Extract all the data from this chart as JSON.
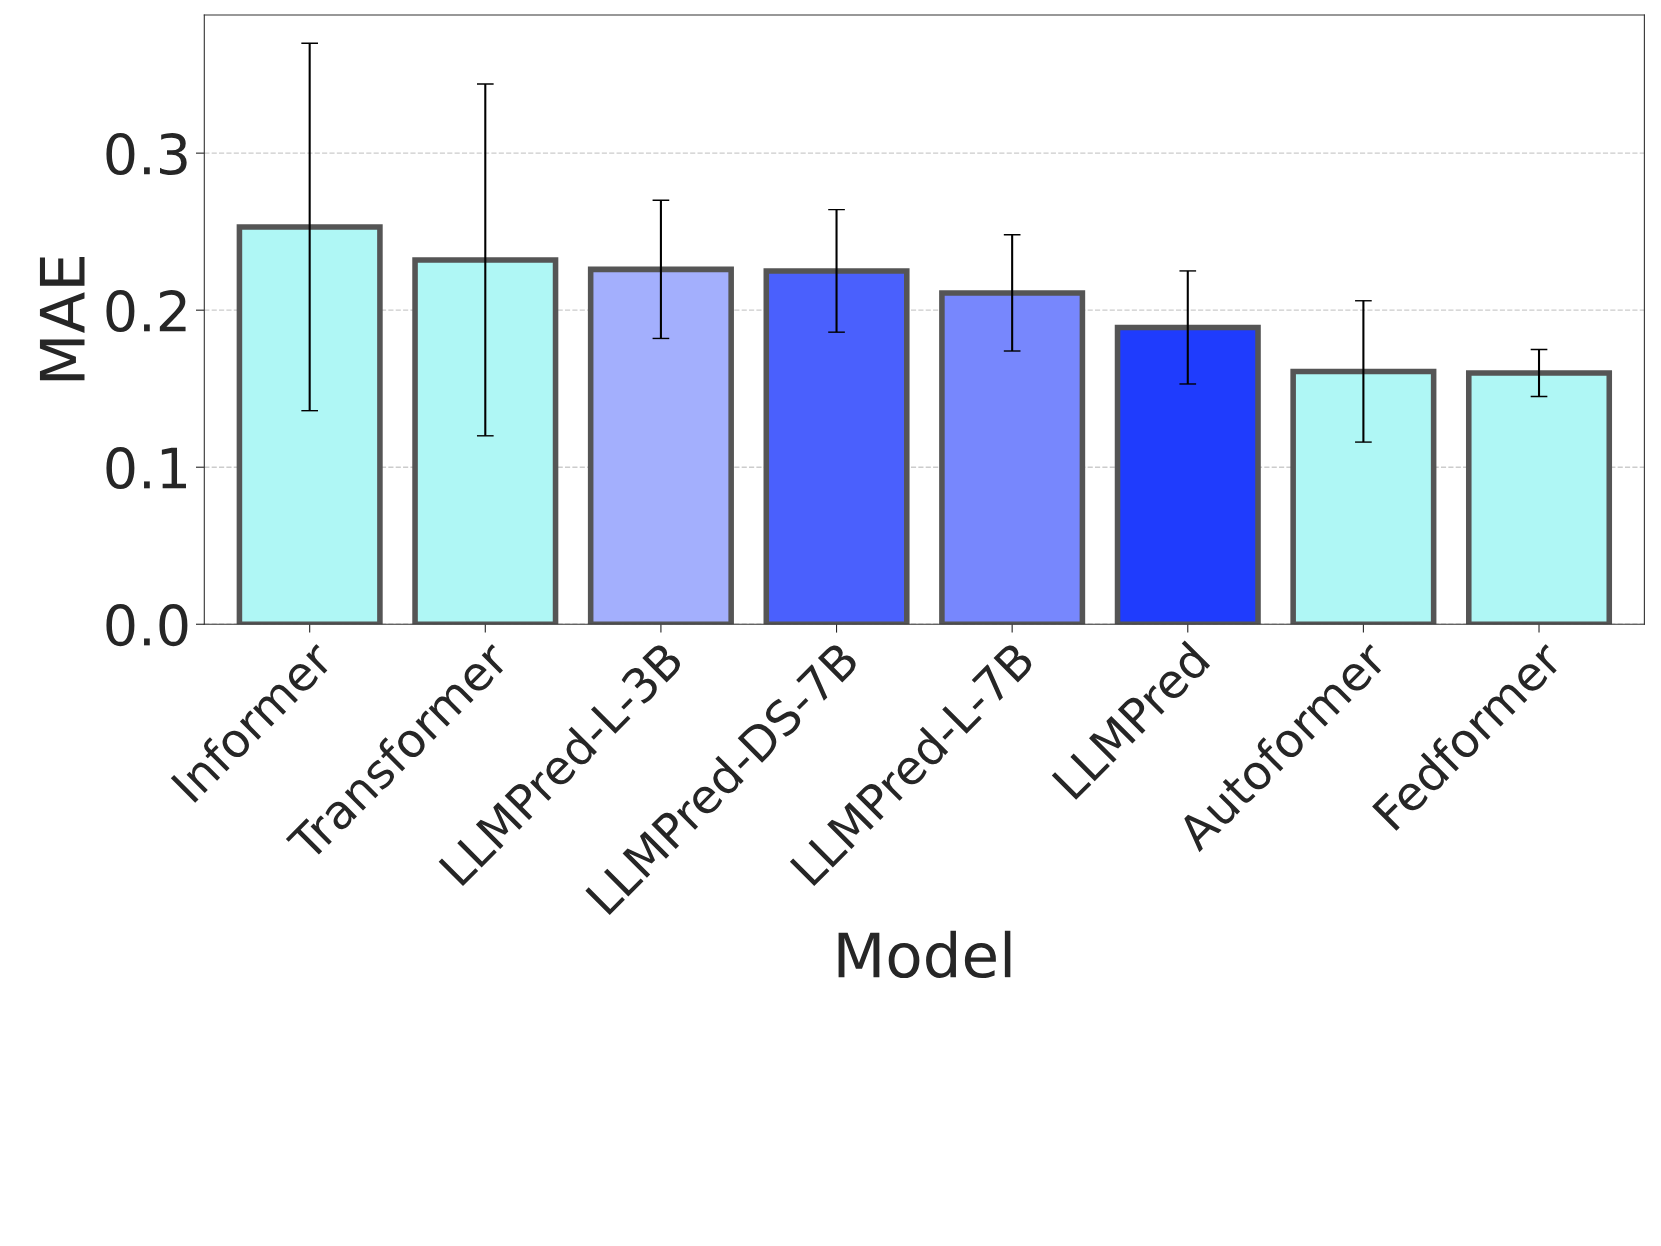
{
  "chart_data": {
    "type": "bar",
    "xlabel": "Model",
    "ylabel": "MAE",
    "categories": [
      "Informer",
      "Transformer",
      "LLMPred-L-3B",
      "LLMPred-DS-7B",
      "LLMPred-L-7B",
      "LLMPred",
      "Autoformer",
      "Fedformer"
    ],
    "values": [
      0.253,
      0.232,
      0.226,
      0.225,
      0.211,
      0.189,
      0.161,
      0.16
    ],
    "errors": [
      0.117,
      0.112,
      0.044,
      0.039,
      0.037,
      0.036,
      0.045,
      0.015
    ],
    "colors": [
      "#aff7f5",
      "#aff7f5",
      "#a3affd",
      "#4a60fd",
      "#7787fd",
      "#1f3cfd",
      "#aff7f5",
      "#aff7f5"
    ],
    "ylim": [
      0,
      0.388
    ],
    "yticks": [
      {
        "value": 0,
        "label": "0.0"
      },
      0.1,
      0.2,
      0.3
    ],
    "grid": "y"
  }
}
